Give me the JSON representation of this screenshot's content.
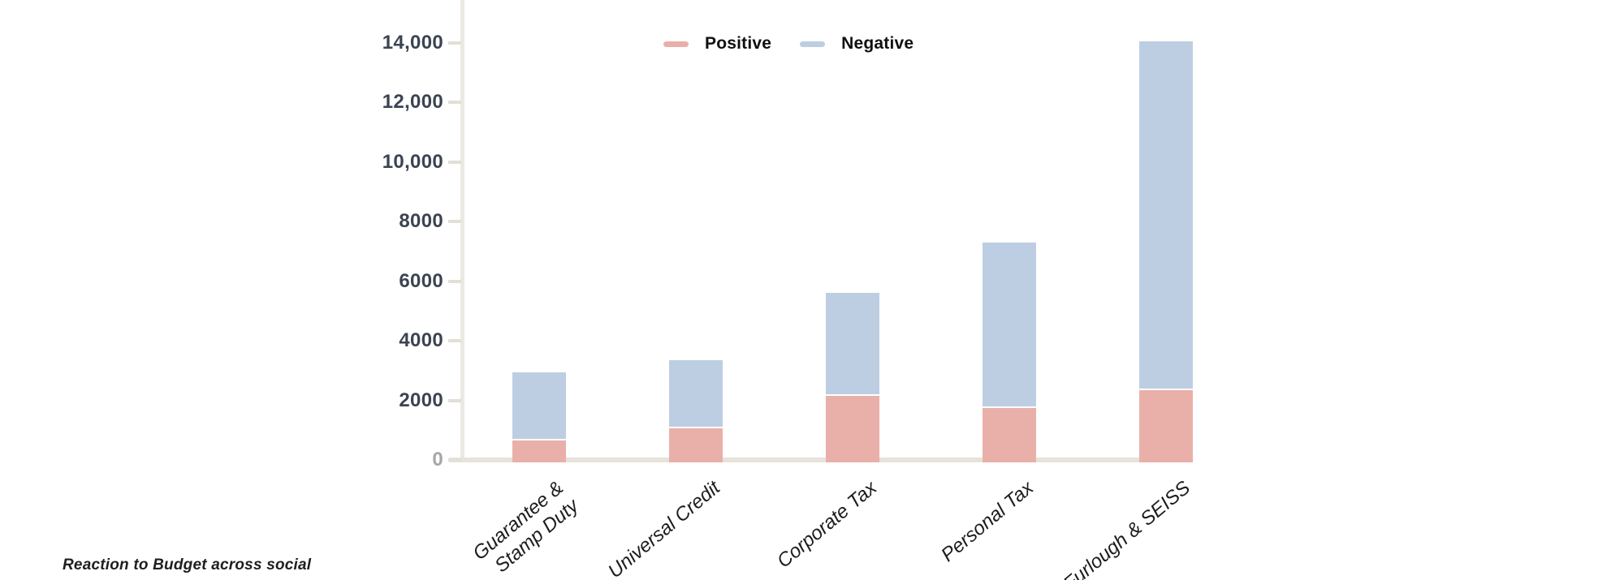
{
  "caption": "Reaction to Budget across social",
  "colors": {
    "positive": "#e9b0aa",
    "negative": "#bdcee3",
    "axis_label": "#3b4452",
    "zero_label": "#a6a6a6",
    "axis_line": "#ebe9e3",
    "baseline": "#e6e3db",
    "tick": "#e2dfd7",
    "label_text": "#1d1d1d"
  },
  "chart_data": {
    "type": "bar",
    "stacked": true,
    "title": "",
    "xlabel": "",
    "ylabel": "",
    "categories": [
      "Guarantee &\nStamp Duty",
      "Universal Credit",
      "Corporate Tax",
      "Personal Tax",
      "Furlough & SEISS"
    ],
    "series": [
      {
        "name": "Positive",
        "color": "#e9b0aa",
        "values": [
          650,
          1050,
          2150,
          1750,
          2350
        ]
      },
      {
        "name": "Negative",
        "color": "#bdcee3",
        "values": [
          2300,
          2300,
          3450,
          5550,
          11700
        ]
      }
    ],
    "stack_totals": [
      2950,
      3350,
      5600,
      7300,
      14050
    ],
    "ylim": [
      0,
      15400
    ],
    "y_ticks": [
      {
        "value": 0,
        "label": "0",
        "muted": true
      },
      {
        "value": 2000,
        "label": "2000"
      },
      {
        "value": 4000,
        "label": "4000"
      },
      {
        "value": 6000,
        "label": "6000"
      },
      {
        "value": 8000,
        "label": "8000"
      },
      {
        "value": 10000,
        "label": "10,000"
      },
      {
        "value": 12000,
        "label": "12,000"
      },
      {
        "value": 14000,
        "label": "14,000"
      }
    ],
    "grid": false,
    "legend_position": "top-center"
  }
}
